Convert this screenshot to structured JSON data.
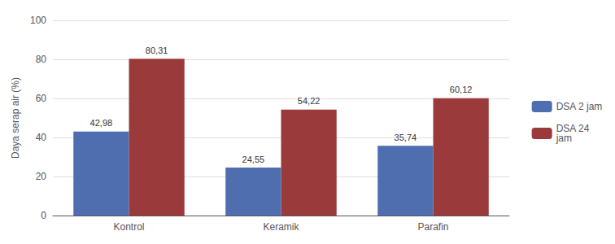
{
  "chart_data": {
    "type": "bar",
    "categories": [
      "Kontrol",
      "Keramik",
      "Parafin"
    ],
    "series": [
      {
        "name": "DSA 2 jam",
        "color": "#4F6EAF",
        "values": [
          42.98,
          24.55,
          35.74
        ],
        "value_labels": [
          "42,98",
          "24,55",
          "35,74"
        ]
      },
      {
        "name": "DSA 24\njam",
        "color": "#9B3A3A",
        "values": [
          80.31,
          54.22,
          60.12
        ],
        "value_labels": [
          "80,31",
          "54,22",
          "60,12"
        ]
      }
    ],
    "ylabel": "Daya serap air (%)",
    "ylim": [
      0,
      100
    ],
    "yticks": [
      0,
      20,
      40,
      60,
      80,
      100
    ],
    "grid": true,
    "legend": "right",
    "data_labels": true
  }
}
